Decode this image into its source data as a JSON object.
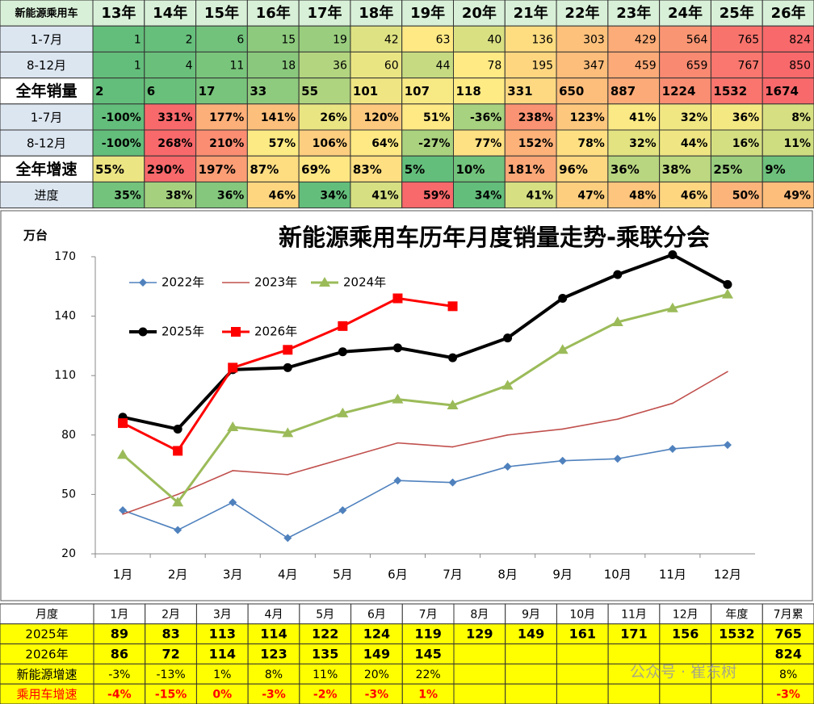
{
  "top_table": {
    "header": [
      "新能源乘用车",
      "13年",
      "14年",
      "15年",
      "16年",
      "17年",
      "18年",
      "19年",
      "20年",
      "21年",
      "22年",
      "23年",
      "24年",
      "25年",
      "26年"
    ],
    "rows": [
      [
        "1-7月",
        "1",
        "2",
        "6",
        "15",
        "19",
        "42",
        "63",
        "40",
        "136",
        "303",
        "429",
        "564",
        "765",
        "824"
      ],
      [
        "8-12月",
        "1",
        "4",
        "11",
        "18",
        "36",
        "60",
        "44",
        "78",
        "195",
        "347",
        "459",
        "659",
        "767",
        "850"
      ],
      [
        "全年销量",
        "2",
        "6",
        "17",
        "33",
        "55",
        "101",
        "107",
        "118",
        "331",
        "650",
        "887",
        "1224",
        "1532",
        "1674"
      ],
      [
        "1-7月",
        "-100%",
        "331%",
        "177%",
        "141%",
        "26%",
        "120%",
        "51%",
        "-36%",
        "238%",
        "123%",
        "41%",
        "32%",
        "36%",
        "8%"
      ],
      [
        "8-12月",
        "-100%",
        "268%",
        "210%",
        "57%",
        "106%",
        "64%",
        "-27%",
        "77%",
        "152%",
        "78%",
        "32%",
        "44%",
        "16%",
        "11%"
      ],
      [
        "全年增速",
        "55%",
        "290%",
        "197%",
        "87%",
        "69%",
        "83%",
        "5%",
        "10%",
        "181%",
        "96%",
        "36%",
        "38%",
        "25%",
        "9%"
      ],
      [
        "进度",
        "35%",
        "38%",
        "36%",
        "46%",
        "34%",
        "41%",
        "59%",
        "34%",
        "41%",
        "47%",
        "48%",
        "46%",
        "50%",
        "49%"
      ]
    ]
  },
  "chart_data": {
    "type": "line",
    "title": "新能源乘用车历年月度销量走势-乘联分会",
    "ylabel": "万台",
    "categories": [
      "1月",
      "2月",
      "3月",
      "4月",
      "5月",
      "6月",
      "7月",
      "8月",
      "9月",
      "10月",
      "11月",
      "12月"
    ],
    "series": [
      {
        "name": "2022年",
        "color": "#4f81bd",
        "marker": "diamond",
        "values": [
          42,
          32,
          46,
          28,
          42,
          57,
          56,
          64,
          67,
          68,
          73,
          75
        ]
      },
      {
        "name": "2023年",
        "color": "#c0504d",
        "marker": "none",
        "values": [
          40,
          50,
          62,
          60,
          68,
          76,
          74,
          80,
          83,
          88,
          96,
          112
        ]
      },
      {
        "name": "2024年",
        "color": "#9bbb59",
        "marker": "triangle",
        "values": [
          70,
          46,
          84,
          81,
          91,
          98,
          95,
          105,
          123,
          137,
          144,
          151
        ]
      },
      {
        "name": "2025年",
        "color": "#000000",
        "marker": "circle",
        "values": [
          89,
          83,
          113,
          114,
          122,
          124,
          119,
          129,
          149,
          161,
          171,
          156
        ]
      },
      {
        "name": "2026年",
        "color": "#ff0000",
        "marker": "square",
        "values": [
          86,
          72,
          114,
          123,
          135,
          149,
          145,
          null,
          null,
          null,
          null,
          null
        ]
      }
    ],
    "ylim": [
      20,
      170
    ],
    "yticks": [
      20,
      50,
      80,
      110,
      140,
      170
    ],
    "grid": false
  },
  "bottom_table": {
    "header": [
      "月度",
      "1月",
      "2月",
      "3月",
      "4月",
      "5月",
      "6月",
      "7月",
      "8月",
      "9月",
      "10月",
      "11月",
      "12月",
      "年度",
      "7月累"
    ],
    "rows": [
      [
        "2025年",
        "89",
        "83",
        "113",
        "114",
        "122",
        "124",
        "119",
        "129",
        "149",
        "161",
        "171",
        "156",
        "1532",
        "765"
      ],
      [
        "2026年",
        "86",
        "72",
        "114",
        "123",
        "135",
        "149",
        "145",
        null,
        null,
        null,
        null,
        null,
        null,
        "824"
      ],
      [
        "新能源增速",
        "-3%",
        "-13%",
        "1%",
        "8%",
        "11%",
        "20%",
        "22%",
        null,
        null,
        null,
        null,
        null,
        null,
        "8%"
      ],
      [
        "乘用车增速",
        "-4%",
        "-15%",
        "0%",
        "-3%",
        "-2%",
        "-3%",
        "1%",
        null,
        null,
        null,
        null,
        null,
        null,
        "-3%"
      ]
    ]
  },
  "watermark": "公众号 · 崔东树"
}
